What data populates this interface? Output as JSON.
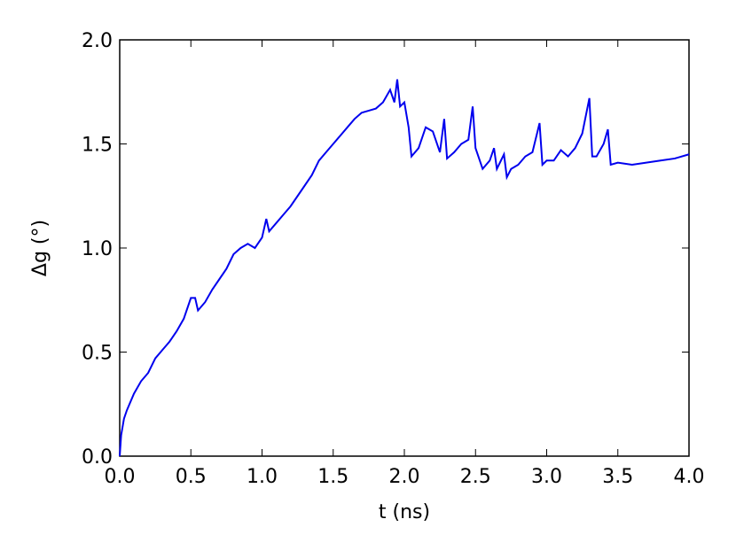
{
  "chart_data": {
    "type": "line",
    "x_label": "t (ns)",
    "y_label": "Δg (°)",
    "x": [
      0,
      0.01,
      0.03,
      0.05,
      0.1,
      0.15,
      0.2,
      0.25,
      0.3,
      0.35,
      0.4,
      0.45,
      0.5,
      0.53,
      0.55,
      0.6,
      0.65,
      0.7,
      0.75,
      0.8,
      0.85,
      0.9,
      0.95,
      1.0,
      1.03,
      1.05,
      1.1,
      1.15,
      1.2,
      1.25,
      1.3,
      1.35,
      1.4,
      1.45,
      1.5,
      1.55,
      1.6,
      1.65,
      1.7,
      1.75,
      1.8,
      1.85,
      1.9,
      1.93,
      1.95,
      1.97,
      2.0,
      2.03,
      2.05,
      2.1,
      2.15,
      2.2,
      2.25,
      2.28,
      2.3,
      2.35,
      2.4,
      2.45,
      2.48,
      2.5,
      2.55,
      2.6,
      2.63,
      2.65,
      2.7,
      2.72,
      2.75,
      2.8,
      2.85,
      2.9,
      2.95,
      2.97,
      3.0,
      3.05,
      3.1,
      3.15,
      3.2,
      3.25,
      3.3,
      3.32,
      3.35,
      3.4,
      3.43,
      3.45,
      3.5,
      3.6,
      3.7,
      3.8,
      3.9,
      4.0
    ],
    "series": [
      {
        "color": "#0000ee",
        "values": [
          0,
          0.1,
          0.18,
          0.22,
          0.3,
          0.36,
          0.4,
          0.47,
          0.51,
          0.55,
          0.6,
          0.66,
          0.76,
          0.76,
          0.7,
          0.74,
          0.8,
          0.85,
          0.9,
          0.97,
          1.0,
          1.02,
          1.0,
          1.05,
          1.14,
          1.08,
          1.12,
          1.16,
          1.2,
          1.25,
          1.3,
          1.35,
          1.42,
          1.46,
          1.5,
          1.54,
          1.58,
          1.62,
          1.65,
          1.66,
          1.67,
          1.7,
          1.76,
          1.7,
          1.81,
          1.68,
          1.7,
          1.58,
          1.44,
          1.48,
          1.58,
          1.56,
          1.46,
          1.62,
          1.43,
          1.46,
          1.5,
          1.52,
          1.68,
          1.48,
          1.38,
          1.42,
          1.48,
          1.38,
          1.45,
          1.34,
          1.38,
          1.4,
          1.44,
          1.46,
          1.6,
          1.4,
          1.42,
          1.42,
          1.47,
          1.44,
          1.48,
          1.55,
          1.72,
          1.44,
          1.44,
          1.5,
          1.57,
          1.4,
          1.41,
          1.4,
          1.41,
          1.42,
          1.43,
          1.45
        ]
      }
    ],
    "xlim": [
      0,
      4
    ],
    "ylim": [
      0,
      2
    ],
    "xticks": [
      {
        "value": 0,
        "label": "0.0"
      },
      0.5,
      {
        "value": 1,
        "label": "1.0"
      },
      1.5,
      {
        "value": 2,
        "label": "2.0"
      },
      2.5,
      {
        "value": 3,
        "label": "3.0"
      },
      3.5,
      {
        "value": 4,
        "label": "4.0"
      }
    ],
    "yticks": [
      {
        "value": 0,
        "label": "0.0"
      },
      0.5,
      {
        "value": 1,
        "label": "1.0"
      },
      1.5,
      {
        "value": 2,
        "label": "2.0"
      }
    ]
  }
}
